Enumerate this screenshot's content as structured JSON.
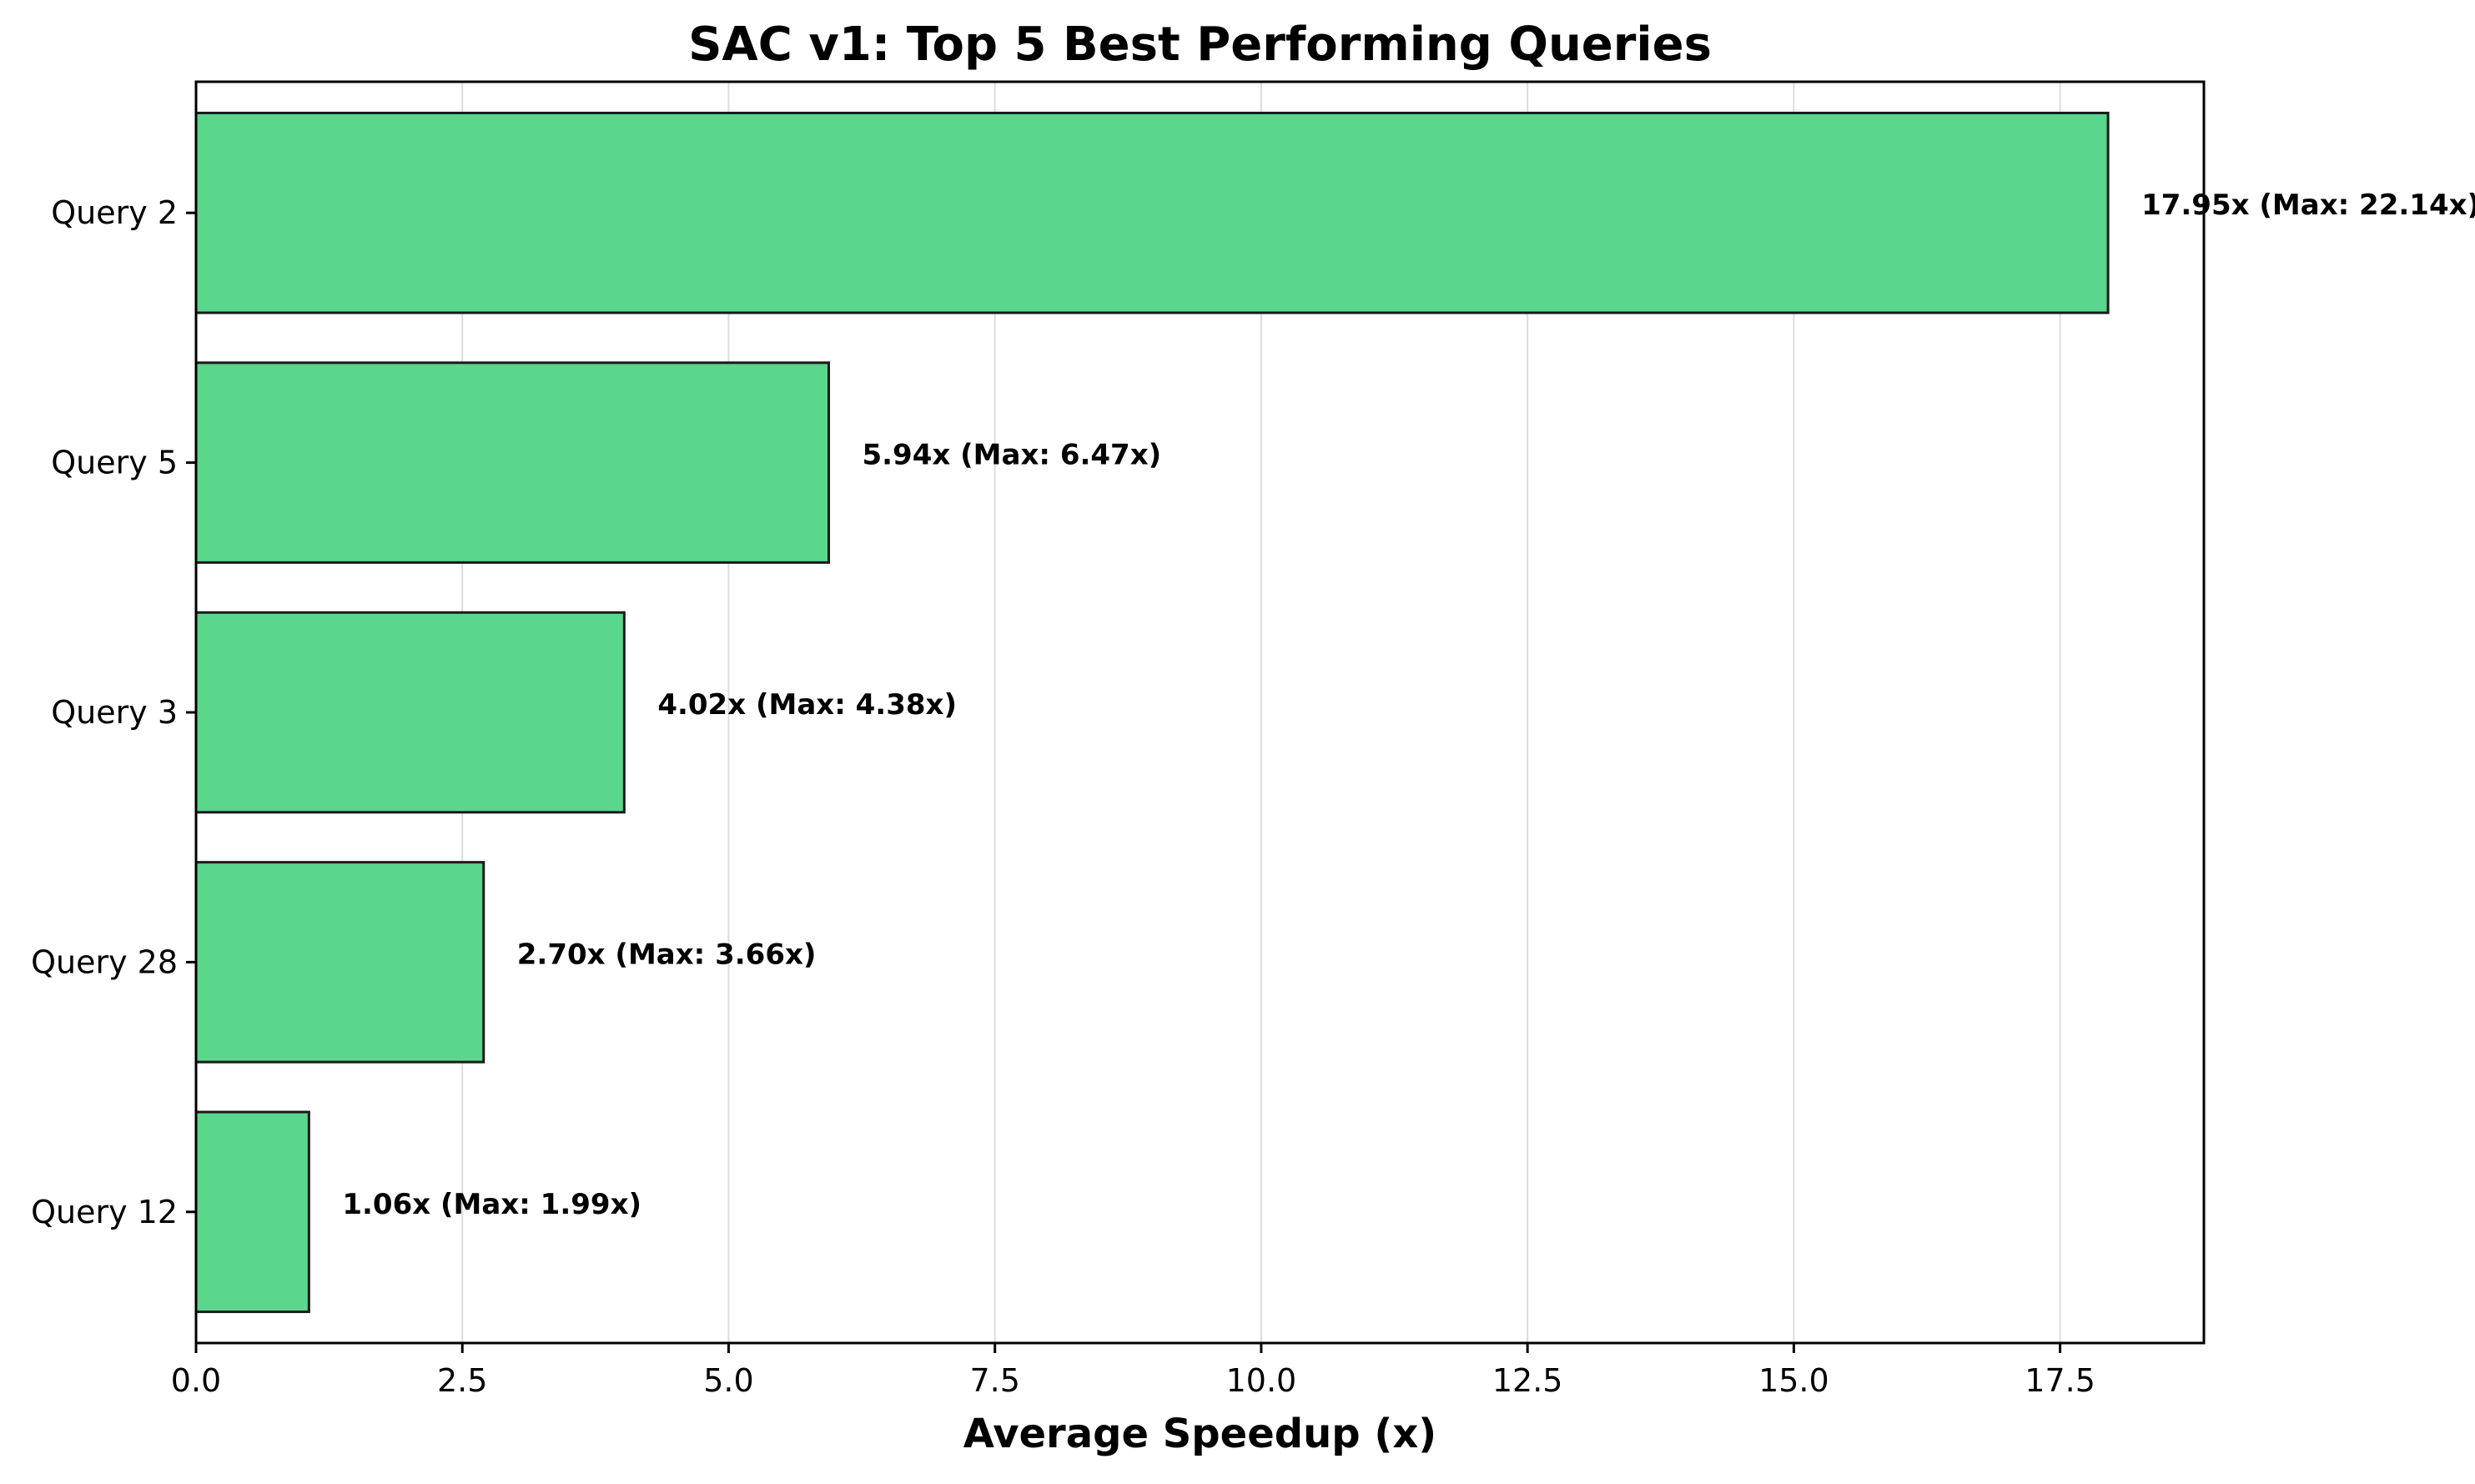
{
  "chart_data": {
    "type": "bar",
    "orientation": "horizontal",
    "title": "SAC v1: Top 5 Best Performing Queries",
    "xlabel": "Average Speedup (x)",
    "ylabel": "",
    "categories": [
      "Query 2",
      "Query 5",
      "Query 3",
      "Query 28",
      "Query 12"
    ],
    "values": [
      17.95,
      5.94,
      4.02,
      2.7,
      1.06
    ],
    "max_values": [
      22.14,
      6.47,
      4.38,
      3.66,
      1.99
    ],
    "data_labels": [
      "17.95x (Max: 22.14x)",
      "5.94x (Max: 6.47x)",
      "4.02x (Max: 4.38x)",
      "2.70x (Max: 3.66x)",
      "1.06x (Max: 1.99x)"
    ],
    "xlim": [
      0,
      18.85
    ],
    "xticks": [
      0.0,
      2.5,
      5.0,
      7.5,
      10.0,
      12.5,
      15.0,
      17.5
    ],
    "xtick_labels": [
      "0.0",
      "2.5",
      "5.0",
      "7.5",
      "10.0",
      "12.5",
      "15.0",
      "17.5"
    ],
    "grid": "x",
    "legend": "none",
    "colors": {
      "bar_fill": "#5ad68d",
      "bar_edge": "#1a1a1a",
      "grid": "#dcdcdc"
    }
  }
}
